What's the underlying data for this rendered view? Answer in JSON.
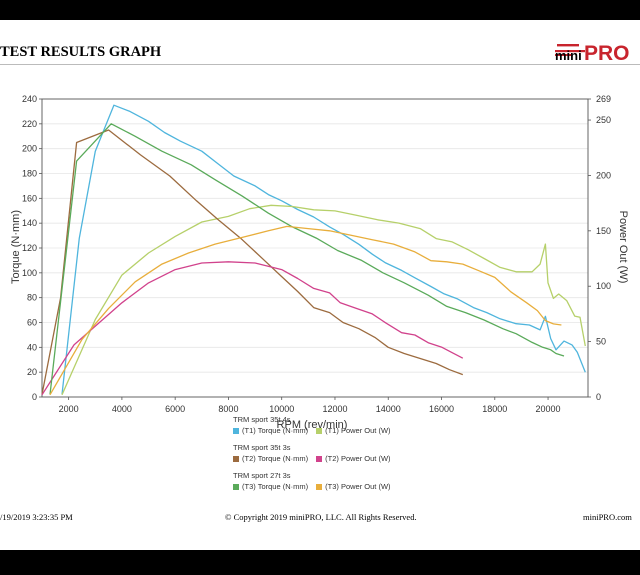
{
  "header": {
    "title": "TEST RESULTS GRAPH",
    "brand": "miniPRO"
  },
  "footer": {
    "date": "/19/2019 3:23:35 PM",
    "copyright": "© Copyright 2019 miniPRO, LLC. All Rights Reserved.",
    "site": "miniPRO.com"
  },
  "colors": {
    "t1_torque": "#4fb5dd",
    "t1_power": "#b6d06a",
    "t2_torque": "#9c6b3f",
    "t2_power": "#d1428c",
    "t3_torque": "#5aaa5a",
    "t3_power": "#e8ae3c"
  },
  "legend": {
    "groups": [
      {
        "title": "TRM sport 35t 4s",
        "items": [
          {
            "label": "(T1) Torque (N·mm)",
            "color": "#4fb5dd"
          },
          {
            "label": "(T1) Power Out (W)",
            "color": "#b6d06a"
          }
        ]
      },
      {
        "title": "TRM sport 35t 3s",
        "items": [
          {
            "label": "(T2) Torque (N·mm)",
            "color": "#9c6b3f"
          },
          {
            "label": "(T2) Power Out (W)",
            "color": "#d1428c"
          }
        ]
      },
      {
        "title": "TRM sport 27t 3s",
        "items": [
          {
            "label": "(T3) Torque (N·mm)",
            "color": "#5aaa5a"
          },
          {
            "label": "(T3) Power Out (W)",
            "color": "#e8ae3c"
          }
        ]
      }
    ]
  },
  "chart_data": {
    "type": "line",
    "xlabel": "RPM (rev/min)",
    "ylabel": "Torque (N·mm)",
    "y2label": "Power Out (W)",
    "xlim": [
      1000,
      21500
    ],
    "ylim": [
      0,
      240
    ],
    "y2lim": [
      0,
      269
    ],
    "grid": true,
    "x_ticks": [
      2000,
      4000,
      6000,
      8000,
      10000,
      12000,
      14000,
      16000,
      18000,
      20000
    ],
    "y_ticks": [
      0,
      20,
      40,
      60,
      80,
      100,
      120,
      140,
      160,
      180,
      200,
      220,
      240
    ],
    "y2_ticks": [
      0,
      50,
      100,
      150,
      200,
      250,
      269
    ],
    "series": [
      {
        "name": "(T1) Torque (N·mm)",
        "axis": "left",
        "color": "#4fb5dd",
        "x": [
          1750,
          2400,
          3000,
          3700,
          4300,
          5000,
          5600,
          6200,
          7000,
          7600,
          8200,
          9000,
          9500,
          10000,
          10600,
          11200,
          11800,
          12300,
          12900,
          13400,
          13900,
          14500,
          15000,
          15600,
          16100,
          16600,
          17200,
          17700,
          18200,
          18800,
          19300,
          19700,
          19900,
          20100,
          20300,
          20600,
          20900,
          21100,
          21400
        ],
        "y": [
          2,
          128,
          198,
          235,
          230,
          222,
          213,
          206,
          198,
          188,
          178,
          170,
          163,
          158,
          151,
          145,
          137,
          131,
          123,
          115,
          108,
          102,
          96,
          89,
          83,
          79,
          72,
          68,
          63,
          59,
          58,
          54,
          65,
          47,
          38,
          45,
          42,
          36,
          20
        ]
      },
      {
        "name": "(T1) Power Out (W)",
        "axis": "right",
        "color": "#b6d06a",
        "x": [
          1750,
          3000,
          4000,
          5000,
          6000,
          7000,
          8000,
          8800,
          9600,
          10400,
          11200,
          12000,
          12800,
          13600,
          14400,
          15200,
          15800,
          16400,
          17000,
          17600,
          18200,
          18800,
          19400,
          19700,
          19900,
          20000,
          20200,
          20400,
          20700,
          21000,
          21200,
          21400
        ],
        "y": [
          2,
          70,
          110,
          130,
          145,
          158,
          163,
          170,
          173,
          172,
          169,
          168,
          164,
          160,
          157,
          152,
          143,
          140,
          133,
          125,
          117,
          113,
          113,
          120,
          138,
          103,
          89,
          93,
          87,
          73,
          72,
          46
        ]
      },
      {
        "name": "(T2) Torque (N·mm)",
        "axis": "left",
        "color": "#9c6b3f",
        "x": [
          1000,
          1700,
          2300,
          3500,
          4700,
          5800,
          6800,
          7600,
          8500,
          9300,
          10000,
          10600,
          11200,
          11800,
          12300,
          12900,
          13500,
          14000,
          14600,
          15200,
          15800,
          16300,
          16800
        ],
        "y": [
          2,
          80,
          205,
          215,
          195,
          178,
          158,
          143,
          127,
          111,
          97,
          85,
          72,
          68,
          60,
          55,
          48,
          40,
          35,
          31,
          27,
          22,
          18
        ]
      },
      {
        "name": "(T2) Power Out (W)",
        "axis": "right",
        "color": "#d1428c",
        "x": [
          1000,
          2200,
          3000,
          4000,
          5000,
          6000,
          7000,
          8000,
          9000,
          10000,
          10600,
          11200,
          11800,
          12200,
          12800,
          13400,
          13900,
          14500,
          15000,
          15500,
          16000,
          16400,
          16800
        ],
        "y": [
          2,
          47,
          64,
          85,
          103,
          115,
          121,
          122,
          121,
          115,
          107,
          98,
          94,
          85,
          80,
          75,
          67,
          58,
          56,
          49,
          45,
          40,
          35
        ]
      },
      {
        "name": "(T3) Torque (N·mm)",
        "axis": "left",
        "color": "#5aaa5a",
        "x": [
          1300,
          2300,
          3600,
          4500,
          5500,
          6600,
          7500,
          8500,
          9500,
          10400,
          11300,
          12100,
          13000,
          13800,
          14600,
          15500,
          16200,
          16900,
          17600,
          18300,
          18800,
          19400,
          19800,
          20100,
          20300,
          20600
        ],
        "y": [
          2,
          190,
          220,
          210,
          198,
          187,
          175,
          162,
          148,
          137,
          128,
          118,
          110,
          100,
          92,
          82,
          73,
          68,
          62,
          55,
          51,
          44,
          40,
          38,
          35,
          33
        ]
      },
      {
        "name": "(T3) Power Out (W)",
        "axis": "right",
        "color": "#e8ae3c",
        "x": [
          1300,
          2500,
          3500,
          4500,
          5500,
          6500,
          7500,
          8500,
          9500,
          10200,
          11000,
          11800,
          12600,
          13400,
          14200,
          15000,
          15600,
          16200,
          16800,
          17400,
          18000,
          18600,
          19200,
          19600,
          19900,
          20200,
          20500
        ],
        "y": [
          2,
          52,
          80,
          104,
          120,
          130,
          138,
          144,
          150,
          154,
          152,
          150,
          146,
          142,
          138,
          131,
          123,
          122,
          120,
          114,
          108,
          95,
          85,
          78,
          69,
          66,
          65
        ]
      }
    ]
  }
}
